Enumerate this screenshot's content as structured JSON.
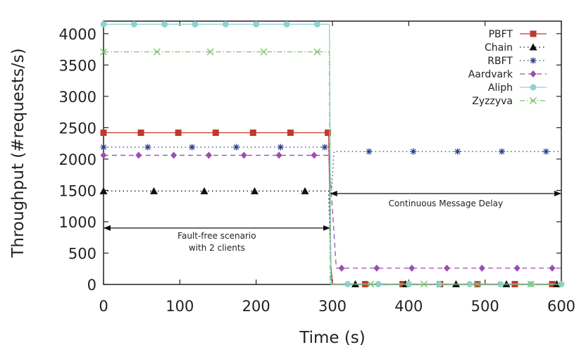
{
  "chart_data": {
    "type": "line",
    "title": "",
    "xlabel": "Time (s)",
    "ylabel": "Throughput (#requests/s)",
    "xlim": [
      0,
      600
    ],
    "ylim": [
      0,
      4200
    ],
    "xticks": [
      0,
      100,
      200,
      300,
      400,
      500,
      600
    ],
    "yticks": [
      0,
      500,
      1000,
      1500,
      2000,
      2500,
      3000,
      3500,
      4000
    ],
    "grid": false,
    "legend_position": "top-right",
    "series": [
      {
        "name": "PBFT",
        "color": "#c0392b",
        "line": "solid",
        "marker": "square",
        "points": [
          [
            0,
            2420
          ],
          [
            295,
            2420
          ],
          [
            298,
            300
          ],
          [
            300,
            5
          ],
          [
            600,
            5
          ]
        ],
        "markers": [
          [
            0,
            2420
          ],
          [
            49,
            2420
          ],
          [
            98,
            2420
          ],
          [
            147,
            2420
          ],
          [
            196,
            2420
          ],
          [
            245,
            2420
          ],
          [
            294,
            2420
          ],
          [
            343,
            5
          ],
          [
            392,
            5
          ],
          [
            441,
            5
          ],
          [
            490,
            5
          ],
          [
            539,
            5
          ],
          [
            588,
            5
          ]
        ]
      },
      {
        "name": "Chain",
        "color": "#111111",
        "line": "dotted",
        "marker": "triangle",
        "points": [
          [
            0,
            1490
          ],
          [
            295,
            1490
          ],
          [
            298,
            200
          ],
          [
            300,
            5
          ],
          [
            600,
            5
          ]
        ],
        "markers": [
          [
            0,
            1490
          ],
          [
            66,
            1490
          ],
          [
            132,
            1490
          ],
          [
            198,
            1490
          ],
          [
            264,
            1490
          ],
          [
            330,
            5
          ],
          [
            396,
            5
          ],
          [
            462,
            5
          ],
          [
            528,
            5
          ],
          [
            594,
            5
          ]
        ]
      },
      {
        "name": "RBFT",
        "color": "#2c3e8c",
        "line": "dotted",
        "marker": "star",
        "points": [
          [
            0,
            2190
          ],
          [
            295,
            2190
          ],
          [
            299,
            1500
          ],
          [
            302,
            2120
          ],
          [
            600,
            2120
          ]
        ],
        "markers": [
          [
            0,
            2190
          ],
          [
            58,
            2190
          ],
          [
            116,
            2190
          ],
          [
            174,
            2190
          ],
          [
            232,
            2190
          ],
          [
            290,
            2190
          ],
          [
            348,
            2120
          ],
          [
            406,
            2120
          ],
          [
            464,
            2120
          ],
          [
            522,
            2120
          ],
          [
            580,
            2120
          ]
        ]
      },
      {
        "name": "Aardvark",
        "color": "#9b4fb0",
        "line": "dashed",
        "marker": "diamond",
        "points": [
          [
            0,
            2060
          ],
          [
            295,
            2060
          ],
          [
            300,
            1200
          ],
          [
            305,
            260
          ],
          [
            600,
            260
          ]
        ],
        "markers": [
          [
            0,
            2060
          ],
          [
            46,
            2060
          ],
          [
            92,
            2060
          ],
          [
            138,
            2060
          ],
          [
            184,
            2060
          ],
          [
            230,
            2060
          ],
          [
            276,
            2060
          ],
          [
            312,
            260
          ],
          [
            358,
            260
          ],
          [
            404,
            260
          ],
          [
            450,
            260
          ],
          [
            496,
            260
          ],
          [
            542,
            260
          ],
          [
            588,
            260
          ]
        ]
      },
      {
        "name": "Aliph",
        "color": "#8fd3cf",
        "line": "solid",
        "marker": "circle",
        "points": [
          [
            0,
            4150
          ],
          [
            296,
            4150
          ],
          [
            298,
            5
          ],
          [
            600,
            5
          ]
        ],
        "markers": [
          [
            0,
            4150
          ],
          [
            40,
            4150
          ],
          [
            80,
            4150
          ],
          [
            120,
            4150
          ],
          [
            160,
            4150
          ],
          [
            200,
            4150
          ],
          [
            240,
            4150
          ],
          [
            280,
            4150
          ],
          [
            320,
            5
          ],
          [
            360,
            5
          ],
          [
            400,
            5
          ],
          [
            440,
            5
          ],
          [
            480,
            5
          ],
          [
            520,
            5
          ],
          [
            560,
            5
          ],
          [
            600,
            5
          ]
        ]
      },
      {
        "name": "Zyzzyva",
        "color": "#7dc36b",
        "line": "dashdot",
        "marker": "x",
        "points": [
          [
            0,
            3710
          ],
          [
            296,
            3710
          ],
          [
            297,
            5
          ],
          [
            600,
            5
          ]
        ],
        "markers": [
          [
            0,
            3710
          ],
          [
            70,
            3710
          ],
          [
            140,
            3710
          ],
          [
            210,
            3710
          ],
          [
            280,
            3710
          ],
          [
            350,
            5
          ],
          [
            420,
            5
          ],
          [
            490,
            5
          ],
          [
            560,
            5
          ]
        ]
      }
    ],
    "annotations": [
      {
        "lines": [
          "Fault-free scenario",
          "with 2 clients"
        ],
        "arrow_x": [
          0,
          297
        ],
        "arrow_y": 900
      },
      {
        "lines": [
          "Continuous Message Delay"
        ],
        "arrow_x": [
          297,
          600
        ],
        "arrow_y": 1450
      }
    ]
  }
}
